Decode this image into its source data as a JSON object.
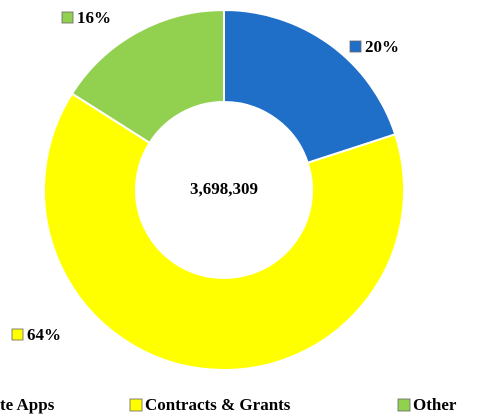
{
  "chart_data": {
    "type": "donut",
    "center_label": "3,698,309",
    "categories": [
      "te Apps",
      "Contracts & Grants",
      "Other"
    ],
    "values": [
      20,
      64,
      16
    ],
    "value_labels": [
      "20%",
      "64%",
      "16%"
    ],
    "colors": [
      "#1f6fc8",
      "#ffff00",
      "#92d050"
    ],
    "legend": "bottom"
  }
}
